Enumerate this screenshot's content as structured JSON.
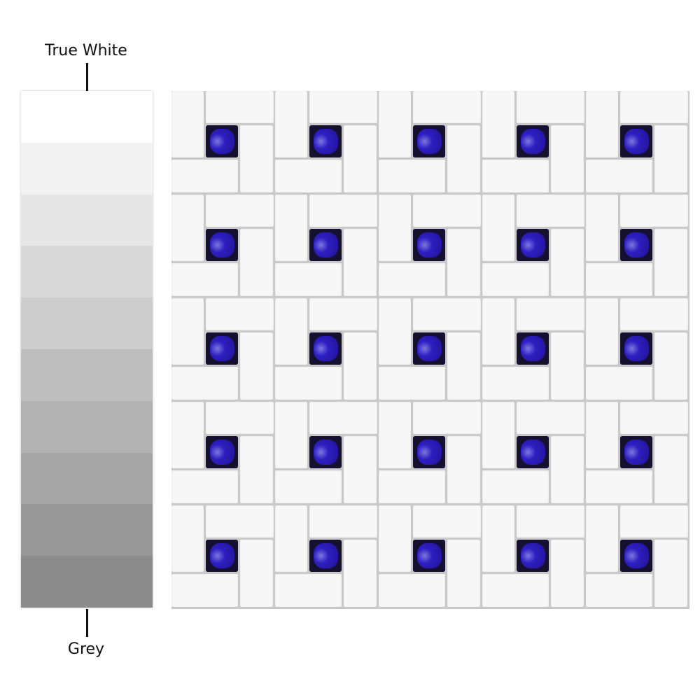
{
  "scale": {
    "top_label": "True White",
    "bottom_label": "Grey",
    "bands": [
      "#ffffff",
      "#f2f2f2",
      "#e6e6e6",
      "#d9d9d9",
      "#cdcdcd",
      "#bebebe",
      "#b2b2b2",
      "#a5a5a5",
      "#989898",
      "#8c8c8c"
    ]
  },
  "mosaic": {
    "pattern": "pinwheel",
    "rows": 5,
    "columns": 5,
    "tile_color": "#f7f7f7",
    "dot_color": "#2418b0",
    "grout_color": "#c9c9c9"
  }
}
